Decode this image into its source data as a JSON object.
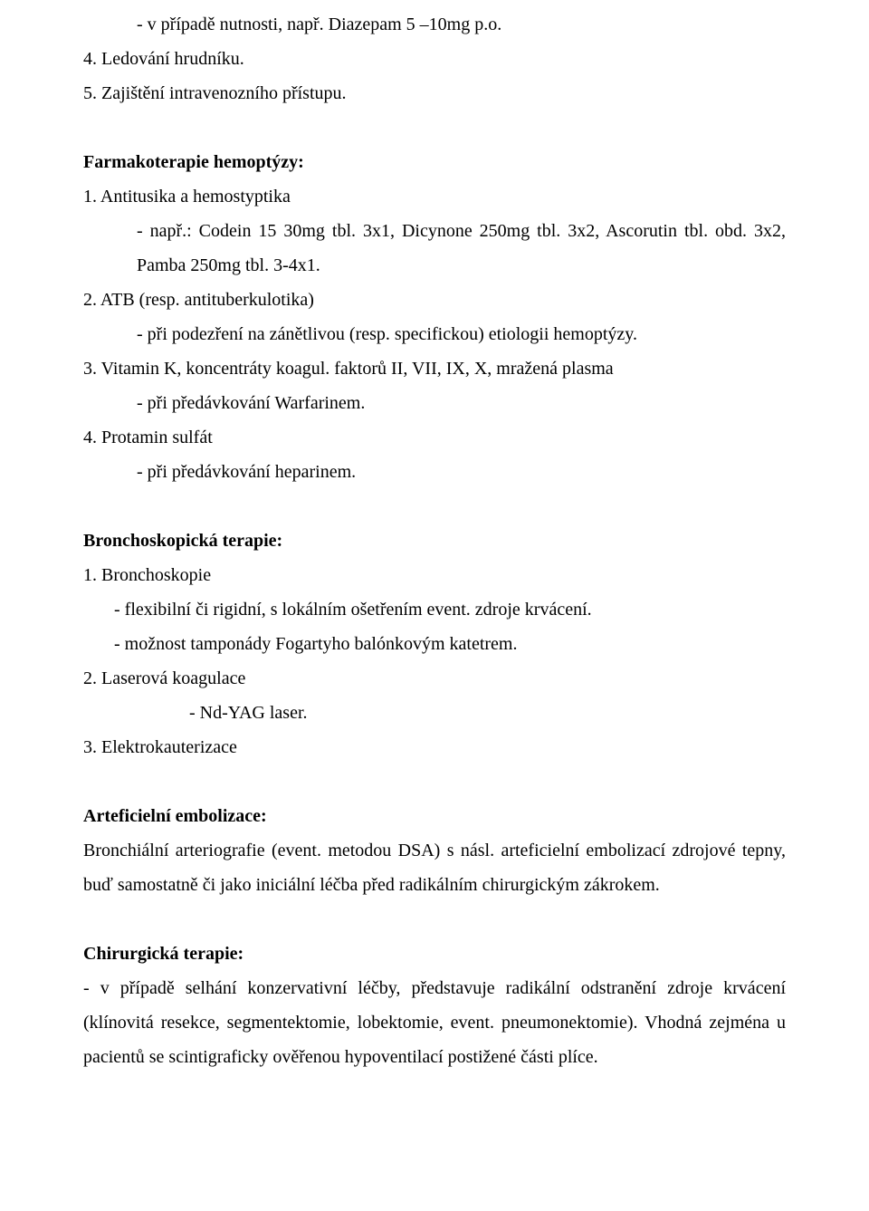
{
  "intro": {
    "diazepam": "- v případě nutnosti, např. Diazepam 5 –10mg p.o.",
    "ledovani": "4. Ledování hrudníku.",
    "zajisteni": "5. Zajištění intravenozního přístupu."
  },
  "farmako": {
    "heading": "Farmakoterapie hemoptýzy:",
    "item1": "1. Antitusika a hemostyptika",
    "item1a": "- např.: Codein 15 30mg tbl. 3x1, Dicynone 250mg tbl. 3x2, Ascorutin tbl. obd. 3x2, Pamba 250mg tbl. 3-4x1.",
    "item2": "2. ATB (resp. antituberkulotika)",
    "item2a": "- při podezření na zánětlivou (resp. specifickou) etiologii  hemoptýzy.",
    "item3": "3. Vitamin K, koncentráty koagul. faktorů II, VII, IX, X, mražená plasma",
    "item3a": "- při předávkování Warfarinem.",
    "item4": "4. Protamin sulfát",
    "item4a": "- při předávkování heparinem."
  },
  "broncho": {
    "heading": "Bronchoskopická terapie:",
    "item1": "1. Bronchoskopie",
    "item1a": "- flexibilní či rigidní, s lokálním ošetřením event. zdroje krvácení.",
    "item1b": "- možnost tamponády Fogartyho balónkovým katetrem.",
    "item2": "2. Laserová koagulace",
    "item2a": "-  Nd-YAG laser.",
    "item3": "3. Elektrokauterizace"
  },
  "arte": {
    "heading": "Arteficielní embolizace:",
    "text": "Bronchiální arteriografie (event. metodou DSA) s násl. arteficielní embolizací zdrojové tepny, buď samostatně či jako iniciální léčba před radikálním chirurgickým zákrokem."
  },
  "chir": {
    "heading": "Chirurgická terapie:",
    "text": "- v případě selhání  konzervativní léčby, představuje radikální odstranění zdroje krvácení (klínovitá resekce, segmentektomie, lobektomie, event. pneumonektomie). Vhodná zejména u pacientů se scintigraficky ověřenou hypoventilací postižené části plíce."
  }
}
